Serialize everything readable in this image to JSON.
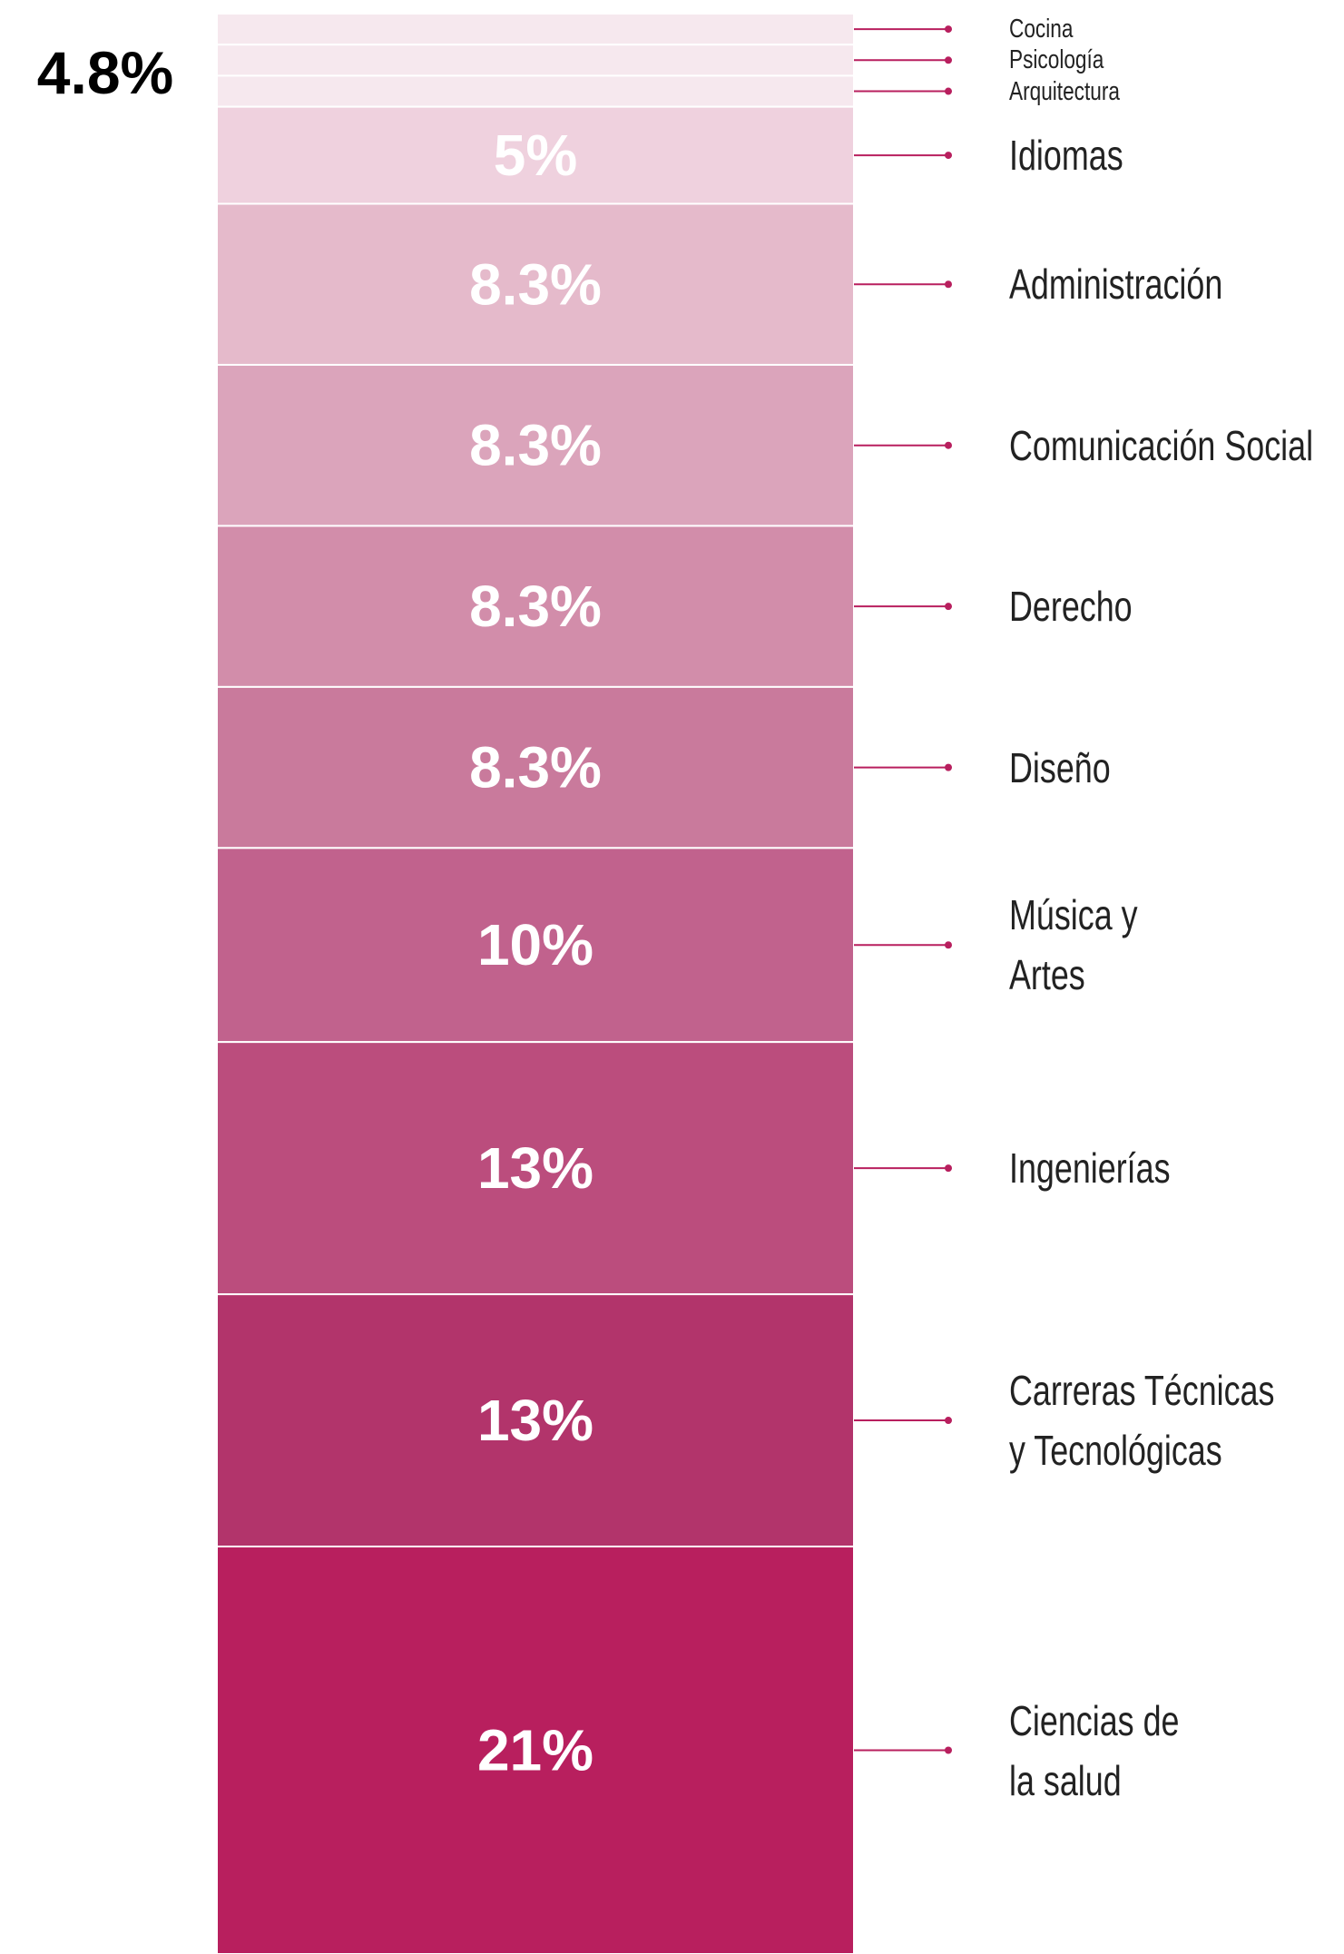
{
  "chart_data": {
    "type": "stacked-bar",
    "annotation": "4.8%",
    "categories": [
      "Cocina",
      "Psicología",
      "Arquitectura",
      "Idiomas",
      "Administración",
      "Comunicación Social",
      "Derecho",
      "Diseño",
      "Música y\nArtes",
      "Ingenierías",
      "Carreras Técnicas\ny Tecnológicas",
      "Ciencias de\nla salud"
    ],
    "values": [
      1.6,
      1.6,
      1.6,
      5,
      8.3,
      8.3,
      8.3,
      8.3,
      10,
      13,
      13,
      21
    ],
    "value_labels": [
      null,
      null,
      null,
      "5%",
      "8.3%",
      "8.3%",
      "8.3%",
      "8.3%",
      "10%",
      "13%",
      "13%",
      "21%"
    ],
    "colors": [
      "#f6e8ee",
      "#f6e8ee",
      "#f6e8ee",
      "#efd1de",
      "#e5bacb",
      "#dba4bb",
      "#d28daa",
      "#c97a9c",
      "#c1628d",
      "#bb4d7d",
      "#b2346b",
      "#b81f5e"
    ],
    "leader_color": "#b81f5e",
    "ylim": [
      0,
      100
    ]
  }
}
